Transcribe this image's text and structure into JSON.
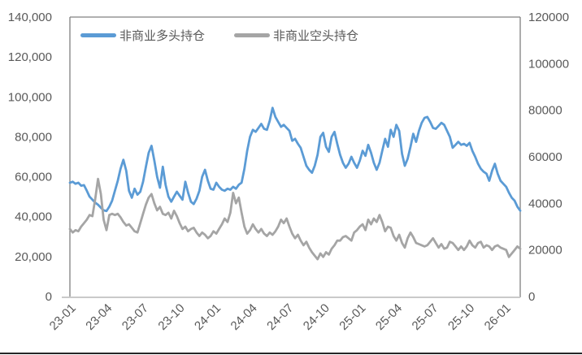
{
  "chart_data": {
    "type": "line",
    "title": "",
    "legend_position": "top",
    "grid": false,
    "x_tick_labels": [
      "23-01",
      "23-04",
      "23-07",
      "23-10",
      "24-01",
      "24-04",
      "24-07",
      "24-10",
      "25-01",
      "25-04",
      "25-07",
      "25-10",
      "26-01"
    ],
    "left_axis": {
      "min": 0,
      "max": 140000,
      "step": 20000,
      "tick_labels": [
        "0",
        "20,000",
        "40,000",
        "60,000",
        "80,000",
        "100,000",
        "120,000",
        "140,000"
      ]
    },
    "right_axis": {
      "min": 0,
      "max": 120000,
      "step": 20000,
      "tick_labels": [
        "0",
        "20000",
        "40000",
        "60000",
        "80000",
        "100000",
        "120000"
      ]
    },
    "axis_color": "#808080",
    "baseline_color": "#C9C9C9",
    "label_color": "#595959",
    "series": [
      {
        "name": "非商业多头持仓",
        "axis": "left",
        "color": "#5B9BD5",
        "values": [
          57000,
          57500,
          56500,
          57000,
          55500,
          55800,
          53000,
          50000,
          48500,
          47000,
          46000,
          44500,
          43200,
          42800,
          45000,
          48000,
          53000,
          58000,
          64000,
          68500,
          63000,
          53000,
          49500,
          54000,
          51000,
          52500,
          57500,
          65000,
          72000,
          75500,
          68000,
          60000,
          54500,
          65000,
          56000,
          50000,
          47500,
          50000,
          52500,
          50500,
          48500,
          57500,
          52000,
          47500,
          46300,
          49000,
          53000,
          60000,
          63500,
          58000,
          54000,
          53500,
          57000,
          55000,
          53500,
          53000,
          54000,
          53500,
          55000,
          54000,
          56000,
          57000,
          64000,
          73000,
          80000,
          83500,
          82500,
          84500,
          86500,
          84000,
          83500,
          88000,
          94500,
          90000,
          87500,
          85000,
          86000,
          84500,
          83000,
          78000,
          79000,
          76500,
          74500,
          70000,
          65500,
          63500,
          62000,
          65500,
          71000,
          80000,
          82000,
          75000,
          72500,
          80000,
          82500,
          76500,
          71000,
          67000,
          64500,
          66500,
          70000,
          67000,
          64500,
          68000,
          73000,
          70500,
          76000,
          72000,
          67000,
          63500,
          67000,
          73000,
          79000,
          75000,
          83500,
          80000,
          86000,
          83000,
          71500,
          65500,
          69000,
          75000,
          81500,
          77500,
          83000,
          87000,
          89500,
          90000,
          87500,
          84500,
          84000,
          85500,
          87000,
          86000,
          83000,
          80000,
          74500,
          76000,
          77500,
          76000,
          76500,
          75500,
          77000,
          73000,
          70000,
          66500,
          64000,
          62500,
          61500,
          58000,
          63000,
          66500,
          61500,
          58000,
          56500,
          55000,
          52000,
          49500,
          48000,
          45000,
          43000
        ]
      },
      {
        "name": "非商业空头持仓",
        "axis": "right",
        "color": "#A5A5A5",
        "values": [
          29000,
          27500,
          28500,
          28000,
          30000,
          31500,
          33000,
          35000,
          34500,
          42000,
          50500,
          44000,
          33000,
          28500,
          35000,
          35500,
          35000,
          35500,
          34000,
          32000,
          30500,
          31000,
          29500,
          28000,
          27500,
          31500,
          35500,
          39500,
          42500,
          44000,
          40000,
          37000,
          38500,
          35500,
          35000,
          36000,
          33500,
          36800,
          34500,
          31500,
          29000,
          30000,
          28000,
          29000,
          29500,
          27500,
          26000,
          27500,
          26500,
          25000,
          26000,
          28000,
          27000,
          29000,
          31000,
          33500,
          32000,
          36000,
          44500,
          40000,
          42500,
          36000,
          30000,
          27000,
          28500,
          31000,
          29000,
          27500,
          29000,
          27000,
          26000,
          27500,
          26500,
          28000,
          30000,
          33000,
          31500,
          33500,
          30000,
          27000,
          25000,
          26500,
          24000,
          22000,
          23500,
          21000,
          19000,
          17500,
          16000,
          18500,
          17000,
          19000,
          18000,
          20500,
          22000,
          24000,
          24000,
          25500,
          26000,
          25000,
          24000,
          27500,
          28500,
          30000,
          31000,
          28500,
          33000,
          31000,
          33500,
          32000,
          35000,
          32000,
          28000,
          30000,
          29500,
          26000,
          24000,
          26500,
          23000,
          21000,
          25000,
          27500,
          25500,
          23000,
          22500,
          22000,
          21500,
          22000,
          23500,
          25000,
          23000,
          21000,
          22500,
          20500,
          21000,
          23500,
          23000,
          21500,
          20000,
          21500,
          20000,
          21500,
          24000,
          22000,
          21000,
          23000,
          23500,
          21000,
          22000,
          21500,
          20000,
          21500,
          22000,
          21000,
          20500,
          20000,
          17000,
          18500,
          20000,
          21500,
          20500
        ]
      }
    ]
  }
}
